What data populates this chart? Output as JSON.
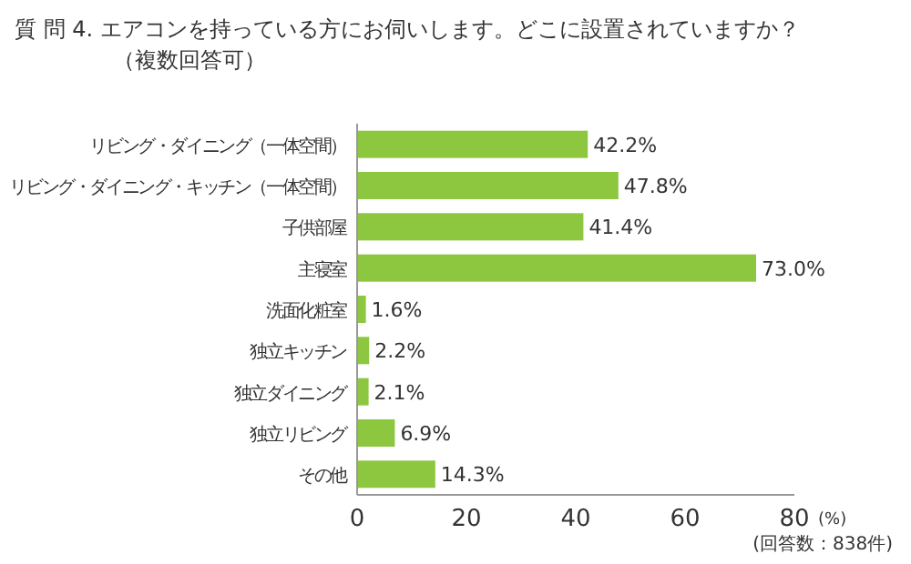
{
  "chart_data": {
    "type": "bar",
    "orientation": "horizontal",
    "title": "質 問 4.  エアコンを持っている方にお伺いします。どこに設置されていますか？",
    "subtitle": "（複数回答可）",
    "xlabel": "(%)",
    "categories": [
      "リビング・ダイニング（一体空間）",
      "リビング・ダイニング・キッチン（一体空間）",
      "子供部屋",
      "主寝室",
      "洗面化粧室",
      "独立キッチン",
      "独立ダイニング",
      "独立リビング",
      "その他"
    ],
    "values": [
      42.2,
      47.8,
      41.4,
      73.0,
      1.6,
      2.2,
      2.1,
      6.9,
      14.3
    ],
    "value_labels": [
      "42.2%",
      "47.8%",
      "41.4%",
      "73.0%",
      "1.6%",
      "2.2%",
      "2.1%",
      "6.9%",
      "14.3%"
    ],
    "color": "#8dc63f",
    "xlim": [
      0,
      80
    ],
    "xticks": [
      0,
      20,
      40,
      60,
      80
    ],
    "annotations": [
      "(回答数：838件)"
    ]
  }
}
